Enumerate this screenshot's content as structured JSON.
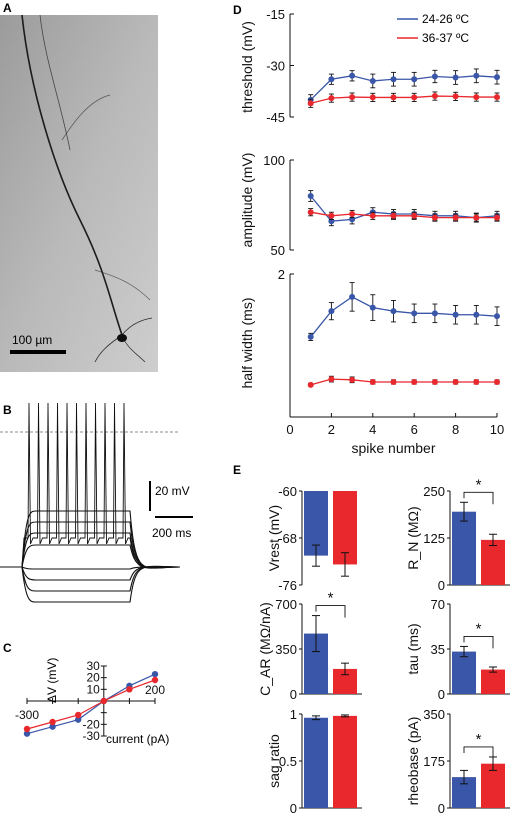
{
  "colors": {
    "blue": "#3a56a8",
    "red": "#e8282d",
    "black": "#111111"
  },
  "panels": {
    "A": {
      "label": "A",
      "scale_bar": "100 µm",
      "image_description_icon": "neuron-micrograph-icon"
    },
    "B": {
      "label": "B",
      "scale_v": "20 mV",
      "scale_t": "200 ms"
    },
    "C": {
      "label": "C",
      "ylabel": "ΔV (mV)",
      "xlabel": "current (pA)"
    },
    "D": {
      "label": "D",
      "legend": [
        "24-26 ºC",
        "36-37 ºC"
      ]
    },
    "E": {
      "label": "E",
      "star": "*"
    }
  },
  "chart_data": [
    {
      "type": "scatter",
      "panel": "C",
      "xlabel": "current (pA)",
      "ylabel": "ΔV (mV)",
      "xlim": [
        -300,
        200
      ],
      "ylim": [
        -30,
        30
      ],
      "xticks": [
        "-300",
        "200"
      ],
      "yticks": [
        "30",
        "20",
        "10",
        "-20",
        "-30"
      ],
      "series": [
        {
          "color": "blue",
          "x": [
            -300,
            -200,
            -100,
            0,
            100,
            200
          ],
          "values": [
            -28,
            -22,
            -16,
            0,
            13,
            23
          ]
        },
        {
          "color": "red",
          "x": [
            -300,
            -200,
            -100,
            0,
            100,
            200
          ],
          "values": [
            -24,
            -18,
            -12,
            0,
            10,
            18
          ]
        }
      ]
    },
    {
      "type": "line",
      "panel": "D-threshold",
      "ylabel": "threshold (mV)",
      "ylim": [
        -45,
        -15
      ],
      "yticks": [
        "-15",
        "-30",
        "-45"
      ],
      "x": [
        1,
        2,
        3,
        4,
        5,
        6,
        7,
        8,
        9,
        10
      ],
      "series": [
        {
          "name": "24-26 ºC",
          "color": "blue",
          "values": [
            -40,
            -34,
            -33,
            -34.5,
            -34,
            -34,
            -33.2,
            -33.5,
            -33,
            -33.4
          ],
          "err": [
            1.5,
            1.5,
            1.5,
            2,
            2,
            2,
            1.8,
            2,
            2,
            2
          ]
        },
        {
          "name": "36-37 ºC",
          "color": "red",
          "values": [
            -41,
            -39.5,
            -39.2,
            -39.3,
            -39.3,
            -39.3,
            -38.9,
            -39,
            -39.2,
            -39.2
          ],
          "err": [
            1.2,
            1.2,
            1.2,
            1.2,
            1.2,
            1.2,
            1.2,
            1.2,
            1.2,
            1.2
          ]
        }
      ]
    },
    {
      "type": "line",
      "panel": "D-amplitude",
      "ylabel": "amplitude (mV)",
      "ylim": [
        50,
        100
      ],
      "yticks": [
        "100",
        "50"
      ],
      "x": [
        1,
        2,
        3,
        4,
        5,
        6,
        7,
        8,
        9,
        10
      ],
      "series": [
        {
          "name": "24-26 ºC",
          "color": "blue",
          "values": [
            80,
            66,
            67,
            71,
            70,
            70,
            69,
            69,
            68,
            69
          ],
          "err": [
            3,
            2.5,
            2.5,
            2.5,
            2.5,
            2.5,
            2.5,
            2.5,
            2.5,
            2.5
          ]
        },
        {
          "name": "36-37 ºC",
          "color": "red",
          "values": [
            71,
            69,
            70,
            69,
            69,
            69,
            68,
            68,
            68,
            68
          ],
          "err": [
            2,
            2,
            2,
            2,
            2,
            2,
            2,
            2,
            2,
            2
          ]
        }
      ]
    },
    {
      "type": "line",
      "panel": "D-halfwidth",
      "ylabel": "half width (ms)",
      "xlabel": "spike number",
      "ylim": [
        0,
        2
      ],
      "yticks": [
        "2"
      ],
      "xticks": [
        "0",
        "2",
        "4",
        "6",
        "8",
        "10"
      ],
      "x": [
        1,
        2,
        3,
        4,
        5,
        6,
        7,
        8,
        9,
        10
      ],
      "series": [
        {
          "name": "24-26 ºC",
          "color": "blue",
          "values": [
            1.12,
            1.48,
            1.68,
            1.53,
            1.48,
            1.45,
            1.45,
            1.43,
            1.43,
            1.41
          ],
          "err": [
            0.05,
            0.12,
            0.2,
            0.18,
            0.15,
            0.13,
            0.13,
            0.13,
            0.13,
            0.13
          ]
        },
        {
          "name": "36-37 ºC",
          "color": "red",
          "values": [
            0.45,
            0.53,
            0.52,
            0.49,
            0.49,
            0.49,
            0.49,
            0.49,
            0.49,
            0.49
          ],
          "err": [
            0.02,
            0.04,
            0.04,
            0.03,
            0.03,
            0.03,
            0.03,
            0.03,
            0.03,
            0.03
          ]
        }
      ]
    },
    {
      "type": "bar",
      "panel": "E-vrest",
      "ylabel": "Vrest (mV)",
      "ylim": [
        -60,
        -76
      ],
      "yticks": [
        "-60",
        "-68",
        "-76"
      ],
      "categories": [
        "24-26 ºC",
        "36-37 ºC"
      ],
      "values": [
        -71,
        -72.5
      ],
      "err": [
        1.8,
        2
      ],
      "sig": false
    },
    {
      "type": "bar",
      "panel": "E-rn",
      "ylabel": "R_N (MΩ)",
      "ylim": [
        0,
        250
      ],
      "yticks": [
        "250",
        "125",
        "0"
      ],
      "categories": [
        "24-26 ºC",
        "36-37 ºC"
      ],
      "values": [
        195,
        120
      ],
      "err": [
        25,
        15
      ],
      "sig": true
    },
    {
      "type": "bar",
      "panel": "E-car",
      "ylabel": "C_AR (MΩ/nA)",
      "ylim": [
        0,
        700
      ],
      "yticks": [
        "700",
        "350",
        "0"
      ],
      "categories": [
        "24-26 ºC",
        "36-37 ºC"
      ],
      "values": [
        470,
        195
      ],
      "err": [
        140,
        45
      ],
      "sig": true
    },
    {
      "type": "bar",
      "panel": "E-tau",
      "ylabel": "tau (ms)",
      "ylim": [
        0,
        70
      ],
      "yticks": [
        "70",
        "35",
        "0"
      ],
      "categories": [
        "24-26 ºC",
        "36-37 ºC"
      ],
      "values": [
        33,
        19
      ],
      "err": [
        4,
        2
      ],
      "sig": true
    },
    {
      "type": "bar",
      "panel": "E-sag",
      "ylabel": "sag ratio",
      "ylim": [
        0,
        1
      ],
      "yticks": [
        "1",
        "0.5",
        "0"
      ],
      "categories": [
        "24-26 ºC",
        "36-37 ºC"
      ],
      "values": [
        0.96,
        0.98
      ],
      "err": [
        0.02,
        0.01
      ],
      "sig": false
    },
    {
      "type": "bar",
      "panel": "E-rheobase",
      "ylabel": "rheobase (pA)",
      "ylim": [
        0,
        350
      ],
      "yticks": [
        "350",
        "175",
        "0"
      ],
      "categories": [
        "24-26 ºC",
        "36-37 ºC"
      ],
      "values": [
        115,
        165
      ],
      "err": [
        25,
        25
      ],
      "sig": true
    }
  ]
}
